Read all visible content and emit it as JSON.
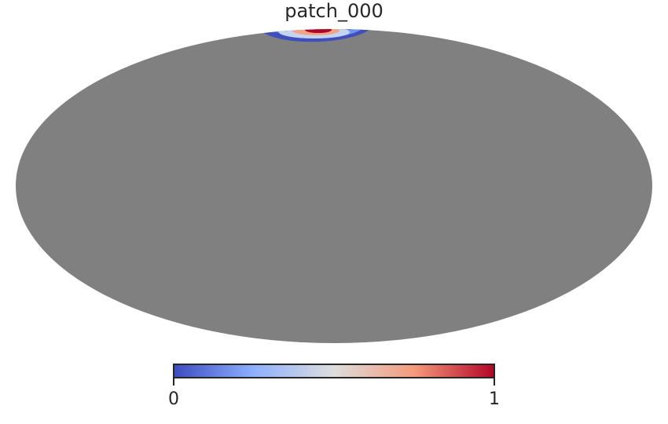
{
  "map": {
    "title": "patch_000",
    "projection": "mollweide",
    "background_color": "#808080",
    "colormap": "coolwarm",
    "colormap_stops": [
      "#3b4cc0",
      "#8db0fe",
      "#dddddd",
      "#f49a7b",
      "#b40426"
    ]
  },
  "colorbar": {
    "min_label": "0",
    "max_label": "1",
    "min": 0,
    "max": 1
  }
}
